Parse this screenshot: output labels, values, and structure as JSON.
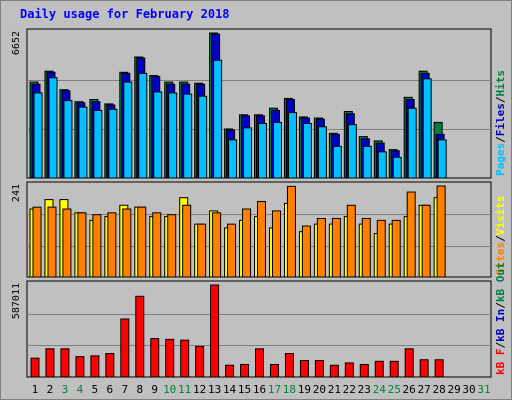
{
  "title": "Daily usage for February 2018",
  "colors": {
    "background": "#c0c0c0",
    "title": "#0000ff",
    "hits": "#008040",
    "files": "#0000c0",
    "pages": "#00c0ff",
    "visits": "#ffff00",
    "sites": "#ff8000",
    "kbin": "#0000c0",
    "kbout": "#008040",
    "kbf": "#ff0000",
    "weekday_label": "#000000",
    "weekend_label": "#008040"
  },
  "chart_data": [
    {
      "type": "bar",
      "panel": "hits-files-pages",
      "ymax_label": "6652",
      "right_labels": [
        {
          "text": "Pages",
          "color": "#00c0ff"
        },
        {
          "text": "/",
          "color": "#000000"
        },
        {
          "text": "Files",
          "color": "#0000c0"
        },
        {
          "text": "/",
          "color": "#000000"
        },
        {
          "text": "Hits",
          "color": "#008040"
        }
      ],
      "ylim": [
        0,
        6652
      ],
      "series": [
        {
          "name": "Hits",
          "values": [
            4400,
            4900,
            4050,
            3500,
            3600,
            3400,
            4850,
            5550,
            4700,
            4400,
            4400,
            4350,
            6652,
            2250,
            2900,
            2900,
            3200,
            3650,
            2800,
            2750,
            2050,
            3050,
            1900,
            1700,
            1300,
            3700,
            4900,
            2550,
            0,
            0,
            0
          ]
        },
        {
          "name": "Files",
          "values": [
            4300,
            4850,
            4000,
            3450,
            3500,
            3350,
            4800,
            5500,
            4650,
            4300,
            4300,
            4300,
            6600,
            2200,
            2850,
            2850,
            3100,
            3600,
            2750,
            2700,
            2000,
            2950,
            1800,
            1600,
            1250,
            3600,
            4800,
            2000,
            0,
            0,
            0
          ]
        },
        {
          "name": "Pages",
          "values": [
            3900,
            4600,
            3550,
            3250,
            3100,
            3150,
            4400,
            4800,
            3950,
            3900,
            3850,
            3750,
            5400,
            1750,
            2300,
            2500,
            2550,
            3000,
            2500,
            2350,
            1450,
            2450,
            1450,
            1200,
            950,
            3200,
            4550,
            1750,
            0,
            0,
            0
          ]
        }
      ]
    },
    {
      "type": "bar",
      "panel": "visits-sites",
      "ymax_label": "241",
      "right_labels": [
        {
          "text": "Sites",
          "color": "#ff8000"
        },
        {
          "text": "/",
          "color": "#000000"
        },
        {
          "text": "Visits",
          "color": "#ffff00"
        }
      ],
      "ylim": [
        0,
        241
      ],
      "series": [
        {
          "name": "Visits",
          "values": [
            180,
            205,
            205,
            170,
            150,
            160,
            190,
            185,
            160,
            160,
            210,
            140,
            175,
            130,
            150,
            160,
            130,
            195,
            120,
            140,
            140,
            160,
            140,
            115,
            140,
            160,
            190,
            210,
            0,
            0,
            0
          ]
        },
        {
          "name": "Sites",
          "values": [
            185,
            185,
            180,
            170,
            165,
            170,
            180,
            185,
            170,
            165,
            190,
            140,
            170,
            140,
            180,
            200,
            175,
            240,
            135,
            155,
            155,
            190,
            155,
            150,
            150,
            225,
            190,
            241,
            0,
            0,
            0
          ]
        }
      ]
    },
    {
      "type": "bar",
      "panel": "kbytes",
      "ymax_label": "587011",
      "right_labels": [
        {
          "text": "kB F",
          "color": "#ff0000"
        },
        {
          "text": "/",
          "color": "#000000"
        },
        {
          "text": "kB In",
          "color": "#0000c0"
        },
        {
          "text": "/",
          "color": "#000000"
        },
        {
          "text": "kB Out",
          "color": "#008040"
        }
      ],
      "ylim": [
        0,
        587011
      ],
      "series": [
        {
          "name": "kB F",
          "values": [
            120000,
            180000,
            180000,
            130000,
            135000,
            150000,
            370000,
            515000,
            245000,
            240000,
            235000,
            195000,
            587011,
            75000,
            80000,
            180000,
            80000,
            150000,
            105000,
            105000,
            75000,
            90000,
            80000,
            100000,
            100000,
            180000,
            110000,
            110000,
            0,
            0,
            0
          ]
        }
      ]
    }
  ],
  "days": [
    "1",
    "2",
    "3",
    "4",
    "5",
    "6",
    "7",
    "8",
    "9",
    "10",
    "11",
    "12",
    "13",
    "14",
    "15",
    "16",
    "17",
    "18",
    "19",
    "20",
    "21",
    "22",
    "23",
    "24",
    "25",
    "26",
    "27",
    "28",
    "29",
    "30",
    "31"
  ],
  "weekend_days": [
    3,
    4,
    10,
    11,
    17,
    18,
    24,
    25,
    31
  ]
}
